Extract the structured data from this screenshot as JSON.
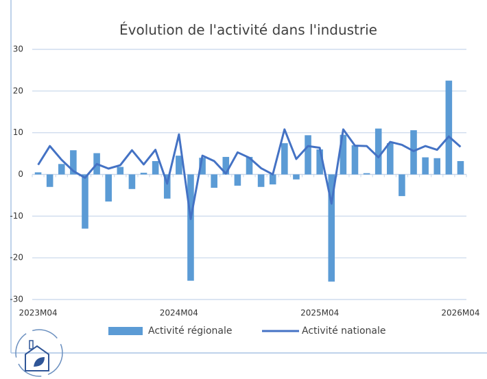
{
  "chart_data": {
    "type": "bar-line",
    "title": "Évolution de l'activité dans l'industrie",
    "categories": [
      "2023M04",
      null,
      null,
      null,
      null,
      null,
      null,
      null,
      null,
      null,
      null,
      null,
      "2024M04",
      null,
      null,
      null,
      null,
      null,
      null,
      null,
      null,
      null,
      null,
      null,
      "2025M04",
      null,
      null,
      null,
      null,
      null,
      null,
      null,
      null,
      null,
      null,
      null,
      "2026M04"
    ],
    "series": [
      {
        "name": "Activité régionale",
        "type": "bar",
        "color": "#5b9bd5",
        "values": [
          0.5,
          -3,
          2.5,
          5.8,
          -13,
          5.1,
          -6.5,
          1.8,
          -3.5,
          0.4,
          3.2,
          -5.8,
          4.5,
          -25.5,
          4,
          -3.2,
          4.2,
          -2.7,
          4.2,
          -3,
          -2.4,
          7.5,
          -1.2,
          9.4,
          6,
          -25.7,
          9.5,
          7,
          0.3,
          11,
          7.5,
          -5.2,
          10.6,
          4.1,
          3.9,
          22.5,
          3.2
        ]
      },
      {
        "name": "Activité nationale",
        "type": "line",
        "color": "#4472c4",
        "values": [
          2.3,
          6.8,
          3.5,
          0.8,
          -0.8,
          2.5,
          1.4,
          2.2,
          5.8,
          2.4,
          5.9,
          -2.2,
          9.6,
          -10.7,
          4.5,
          3.2,
          0.2,
          5.3,
          4,
          1.5,
          0,
          10.8,
          3.7,
          6.8,
          6.4,
          -7,
          10.8,
          6.9,
          6.8,
          4.1,
          7.8,
          7.1,
          5.6,
          6.8,
          5.9,
          9.1,
          6.6
        ]
      }
    ],
    "ylim": [
      -30,
      30
    ],
    "yticks": [
      -30,
      -20,
      -10,
      0,
      10,
      20,
      30
    ],
    "grid": true,
    "legend": "bottom"
  }
}
